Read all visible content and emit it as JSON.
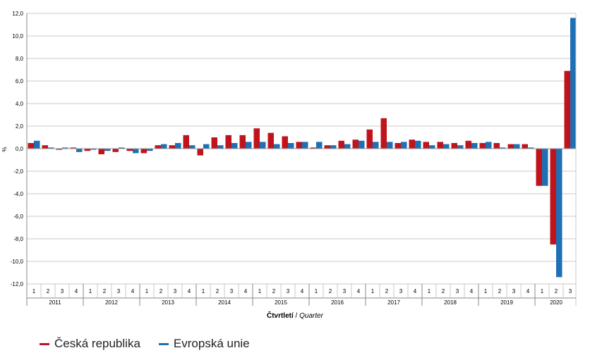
{
  "chart_data": {
    "type": "bar",
    "ylabel": "%",
    "xlabel_cz": "Čtvrtletí",
    "xlabel_sep": " / ",
    "xlabel_en": "Quarter",
    "ylim": [
      -12,
      12
    ],
    "yticks": [
      "-12,0",
      "-10,0",
      "-8,0",
      "-6,0",
      "-4,0",
      "-2,0",
      "0,0",
      "2,0",
      "4,0",
      "6,0",
      "8,0",
      "10,0",
      "12,0"
    ],
    "years": [
      "2011",
      "2012",
      "2013",
      "2014",
      "2015",
      "2016",
      "2017",
      "2018",
      "2019",
      "2020"
    ],
    "quarters": [
      "1",
      "2",
      "3",
      "4"
    ],
    "categories": [
      "2011 Q1",
      "2011 Q2",
      "2011 Q3",
      "2011 Q4",
      "2012 Q1",
      "2012 Q2",
      "2012 Q3",
      "2012 Q4",
      "2013 Q1",
      "2013 Q2",
      "2013 Q3",
      "2013 Q4",
      "2014 Q1",
      "2014 Q2",
      "2014 Q3",
      "2014 Q4",
      "2015 Q1",
      "2015 Q2",
      "2015 Q3",
      "2015 Q4",
      "2016 Q1",
      "2016 Q2",
      "2016 Q3",
      "2016 Q4",
      "2017 Q1",
      "2017 Q2",
      "2017 Q3",
      "2017 Q4",
      "2018 Q1",
      "2018 Q2",
      "2018 Q3",
      "2018 Q4",
      "2019 Q1",
      "2019 Q2",
      "2019 Q3",
      "2019 Q4",
      "2020 Q1",
      "2020 Q2",
      "2020 Q3"
    ],
    "series": [
      {
        "name": "Česká republika",
        "color": "#c0141c",
        "values": [
          0.5,
          0.3,
          -0.1,
          0.1,
          -0.2,
          -0.5,
          -0.3,
          -0.2,
          -0.4,
          0.3,
          0.3,
          1.2,
          -0.6,
          1.0,
          1.2,
          1.2,
          1.8,
          1.4,
          1.1,
          0.6,
          0.1,
          0.3,
          0.7,
          0.8,
          1.7,
          2.7,
          0.5,
          0.8,
          0.6,
          0.6,
          0.5,
          0.7,
          0.5,
          0.5,
          0.4,
          0.4,
          -3.3,
          -8.5,
          6.9
        ]
      },
      {
        "name": "Evropská unie",
        "color": "#1f6fb4",
        "values": [
          0.7,
          0.1,
          0.1,
          -0.3,
          -0.1,
          -0.2,
          0.1,
          -0.4,
          -0.2,
          0.4,
          0.5,
          0.3,
          0.4,
          0.3,
          0.5,
          0.6,
          0.6,
          0.4,
          0.5,
          0.6,
          0.6,
          0.3,
          0.4,
          0.7,
          0.6,
          0.6,
          0.6,
          0.7,
          0.3,
          0.4,
          0.3,
          0.5,
          0.6,
          0.1,
          0.4,
          0.1,
          -3.3,
          -11.4,
          11.6
        ]
      }
    ],
    "grid": true,
    "legend_position": "bottom-left"
  }
}
